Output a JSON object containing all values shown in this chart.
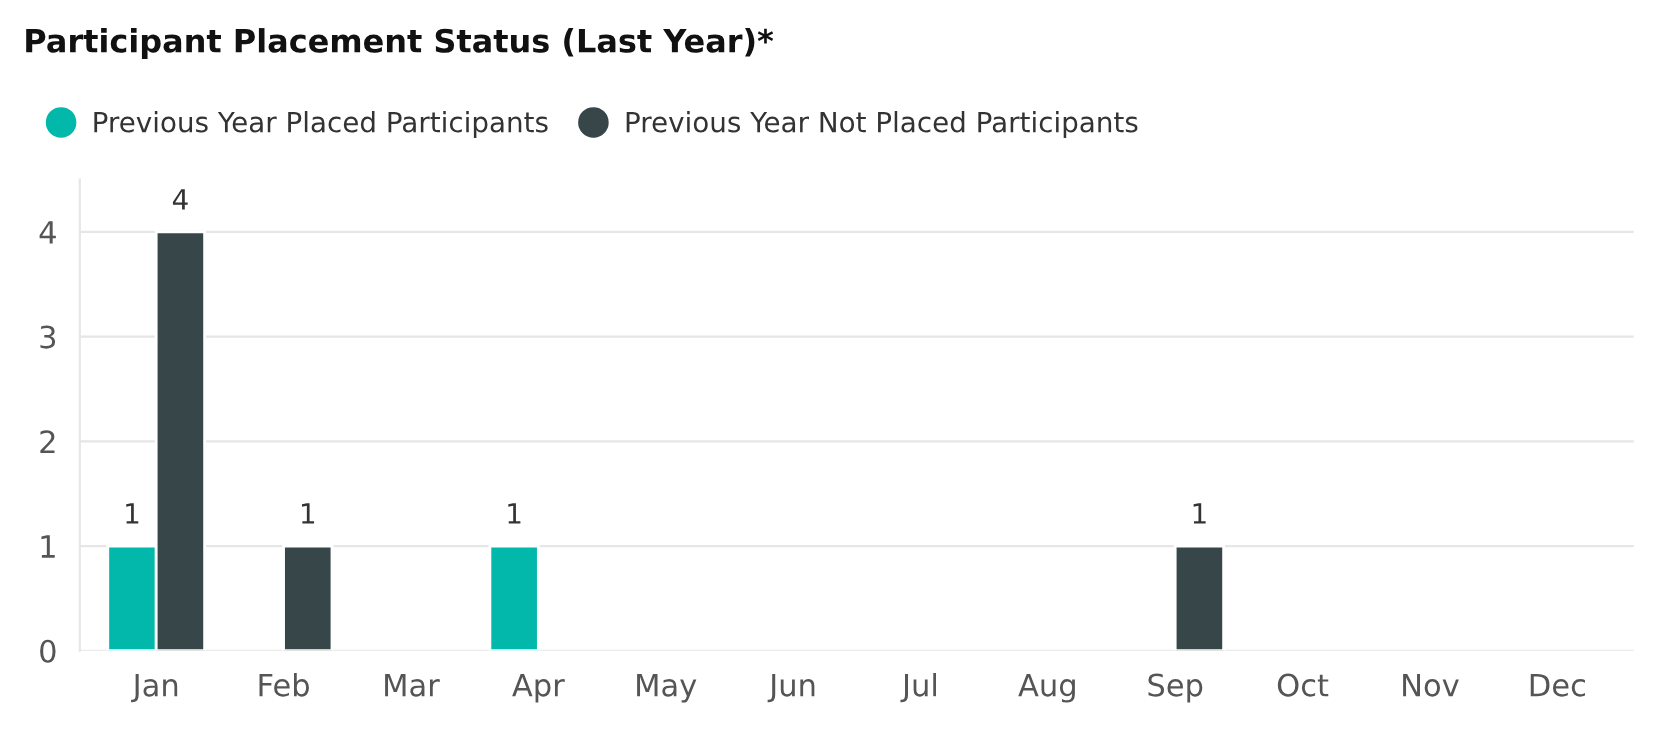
{
  "chart_data": {
    "type": "bar",
    "title": "Participant Placement Status (Last Year)*",
    "categories": [
      "Jan",
      "Feb",
      "Mar",
      "Apr",
      "May",
      "Jun",
      "Jul",
      "Aug",
      "Sep",
      "Oct",
      "Nov",
      "Dec"
    ],
    "series": [
      {
        "name": "Previous Year Placed Participants",
        "color": "#01b8aa",
        "values": [
          1,
          null,
          null,
          1,
          null,
          null,
          null,
          null,
          null,
          null,
          null,
          null
        ]
      },
      {
        "name": "Previous Year Not Placed Participants",
        "color": "#374649",
        "values": [
          4,
          1,
          null,
          null,
          null,
          null,
          null,
          null,
          1,
          null,
          null,
          null
        ]
      }
    ],
    "ylim": [
      0,
      4.5
    ],
    "yticks": [
      0,
      1,
      2,
      3,
      4
    ],
    "grid": "y",
    "legend": "top left",
    "data_labels": true
  }
}
